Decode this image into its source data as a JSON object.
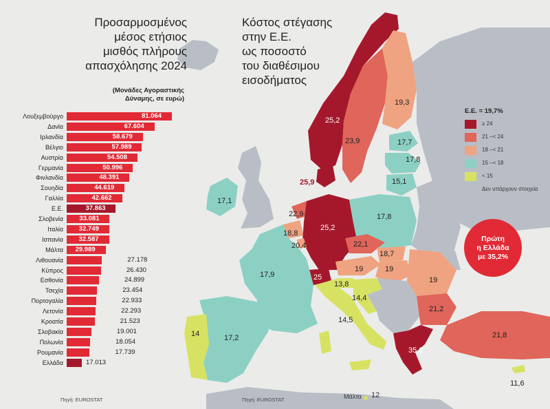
{
  "left_panel": {
    "title_lines": [
      "Προσαρμοσμένος",
      "μέσος ετήσιος",
      "μισθός πλήρους",
      "απασχόλησης 2024"
    ],
    "subtitle_lines": [
      "(Μονάδες Αγοραστικής",
      "Δύναμης, σε ευρώ)"
    ],
    "source": "Πηγή: EUROSTAT"
  },
  "chart_data": {
    "type": "bar",
    "orientation": "horizontal",
    "categories": [
      "Λουξεμβούργο",
      "Δανία",
      "Ιρλανδία",
      "Βέλγιο",
      "Αυστρία",
      "Γερμανία",
      "Φινλανδία",
      "Σουηδία",
      "Γαλλία",
      "Ε.Ε.",
      "Σλοβενία",
      "Ιταλία",
      "Ισπανία",
      "Μάλτα",
      "Λιθουανία",
      "Κύπρος",
      "Εσθονία",
      "Τσεχία",
      "Πορτογαλία",
      "Λετονία",
      "Κροατία",
      "Σλοβακία",
      "Πολωνία",
      "Ρουμανία",
      "Ελλάδα"
    ],
    "values": [
      81064,
      67604,
      58679,
      57989,
      54508,
      50996,
      48391,
      44619,
      42662,
      37863,
      33081,
      32749,
      32587,
      29989,
      27178,
      26430,
      24899,
      23454,
      22933,
      22293,
      21523,
      19001,
      18054,
      17739,
      17013
    ],
    "value_labels": [
      "81.064",
      "67.604",
      "58.679",
      "57.989",
      "54.508",
      "50.996",
      "48.391",
      "44.619",
      "42.662",
      "37.863",
      "33.081",
      "32.749",
      "32.587",
      "29.989",
      "27.178",
      "26.430",
      "24.899",
      "23.454",
      "22.933",
      "22.293",
      "21.523",
      "19.001",
      "18.054",
      "17.739",
      "17.013"
    ],
    "xlim": [
      0,
      81064
    ]
  },
  "map": {
    "title_lines": [
      "Κόστος στέγασης",
      "στην Ε.Ε.",
      "ως ποσοστό",
      "του διαθέσιμου",
      "εισοδήματος"
    ],
    "legend_title": "Ε.Ε. = 19,7%",
    "legend": [
      {
        "label": "≥ 24",
        "color": "#a5182b"
      },
      {
        "label": "21 –< 24",
        "color": "#e0655a"
      },
      {
        "label": "18 –< 21",
        "color": "#efa380"
      },
      {
        "label": "15 –< 18",
        "color": "#8cd0c4"
      },
      {
        "label": "< 15",
        "color": "#d7e263"
      },
      {
        "label": "Δεν υπάρχουν στοιχεία",
        "color": "#b9bec6"
      }
    ],
    "callout_lines": [
      "Πρώτη",
      "η Ελλάδα",
      "με 35,2%"
    ],
    "values": {
      "norway": "25,2",
      "sweden": "23,9",
      "finland": "19,3",
      "estonia": "17,7",
      "latvia": "17,8",
      "lithuania": "15,1",
      "denmark": "25,9",
      "ireland": "17,1",
      "netherlands": "22,9",
      "belgium": "18,8",
      "luxembourg": "20,4",
      "germany": "25,2",
      "poland": "17,8",
      "czechia": "22,1",
      "slovakia": "18,7",
      "austria": "19",
      "hungary": "19",
      "romania": "19",
      "switzerland": "25",
      "slovenia": "13,8",
      "croatia": "14,4",
      "italy": "14,5",
      "france": "17,9",
      "spain": "17,2",
      "portugal": "14",
      "bulgaria": "21,2",
      "greece": "35,2",
      "turkey": "21,8",
      "cyprus": "11,6",
      "malta": "12"
    },
    "malta_label": "Μάλτα",
    "source": "Πηγή: EUROSTAT"
  }
}
